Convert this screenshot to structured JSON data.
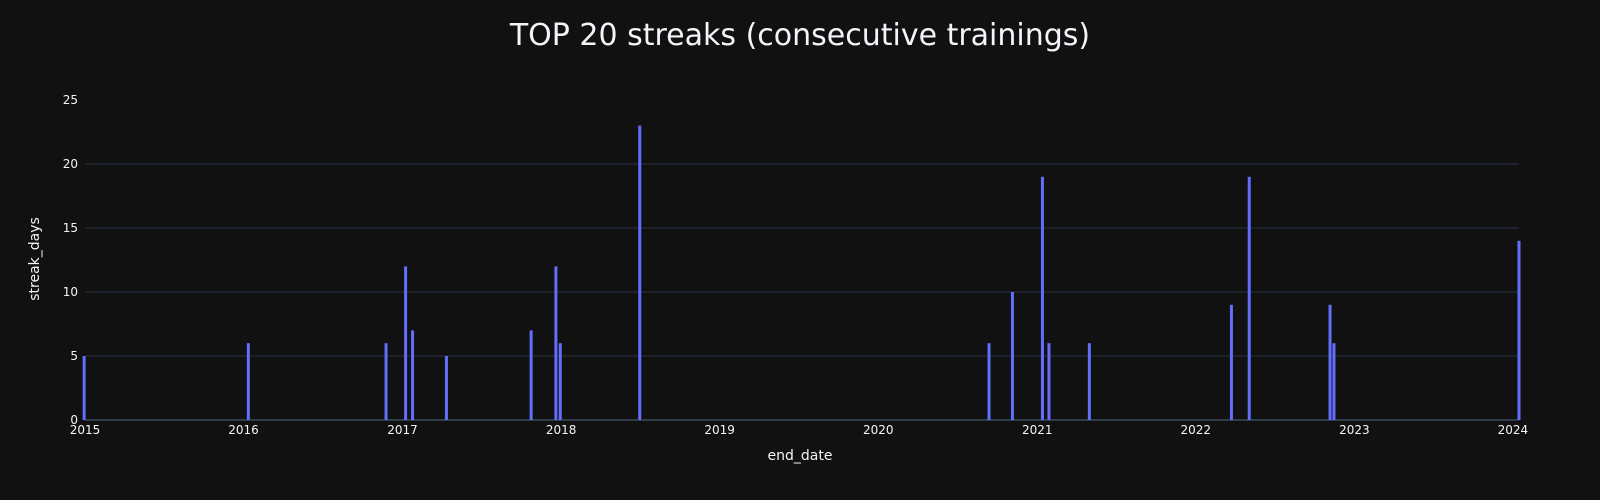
{
  "chart_data": {
    "type": "bar",
    "title": "TOP 20 streaks (consecutive trainings)",
    "xlabel": "end_date",
    "ylabel": "streak_days",
    "xlim": [
      "2015-01-01",
      "2024-01-15"
    ],
    "ylim": [
      0,
      25
    ],
    "x_ticks": [
      "2015",
      "2016",
      "2017",
      "2018",
      "2019",
      "2020",
      "2021",
      "2022",
      "2023",
      "2024"
    ],
    "y_ticks": [
      0,
      5,
      10,
      15,
      20,
      25
    ],
    "grid": true,
    "bar_color": "#636efa",
    "background": "#111111",
    "points": [
      {
        "x": "2014-12-30",
        "y": 5
      },
      {
        "x": "2016-01-12",
        "y": 6
      },
      {
        "x": "2016-11-24",
        "y": 6
      },
      {
        "x": "2017-01-08",
        "y": 12
      },
      {
        "x": "2017-01-24",
        "y": 7
      },
      {
        "x": "2017-04-12",
        "y": 5
      },
      {
        "x": "2017-10-24",
        "y": 7
      },
      {
        "x": "2017-12-20",
        "y": 12
      },
      {
        "x": "2017-12-30",
        "y": 6
      },
      {
        "x": "2018-07-01",
        "y": 23
      },
      {
        "x": "2020-09-12",
        "y": 6
      },
      {
        "x": "2020-11-05",
        "y": 10
      },
      {
        "x": "2021-01-13",
        "y": 19
      },
      {
        "x": "2021-01-28",
        "y": 6
      },
      {
        "x": "2021-05-01",
        "y": 6
      },
      {
        "x": "2022-03-24",
        "y": 9
      },
      {
        "x": "2022-05-04",
        "y": 19
      },
      {
        "x": "2022-11-06",
        "y": 9
      },
      {
        "x": "2022-11-15",
        "y": 6
      },
      {
        "x": "2024-01-15",
        "y": 14
      }
    ]
  }
}
